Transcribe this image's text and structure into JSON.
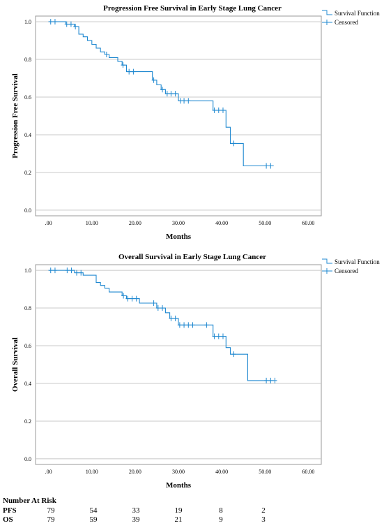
{
  "chart_data": [
    {
      "type": "line",
      "step": true,
      "title": "Progression Free Survival in Early Stage Lung Cancer",
      "xlabel": "Months",
      "ylabel": "Progression Free Survival",
      "xlim": [
        -3,
        63
      ],
      "ylim": [
        -0.03,
        1.03
      ],
      "xticks": [
        0,
        10,
        20,
        30,
        40,
        50,
        60
      ],
      "xtick_labels": [
        ".00",
        "10.00",
        "20.00",
        "30.00",
        "40.00",
        "50.00",
        "60.00"
      ],
      "yticks": [
        0,
        0.2,
        0.4,
        0.6,
        0.8,
        1.0
      ],
      "ytick_labels": [
        "0.0",
        "0.2",
        "0.4",
        "0.6",
        "0.8",
        "1.0"
      ],
      "grid": "horizontal",
      "legend": {
        "placement": "top-right",
        "entries": [
          "Survival Function",
          "Censored"
        ]
      },
      "color": "#1f88d0",
      "series": [
        {
          "steps": [
            [
              0,
              1.0
            ],
            [
              4,
              0.987
            ],
            [
              6,
              0.974
            ],
            [
              7,
              0.934
            ],
            [
              8,
              0.92
            ],
            [
              9,
              0.9
            ],
            [
              10,
              0.88
            ],
            [
              11,
              0.86
            ],
            [
              12,
              0.84
            ],
            [
              13,
              0.826
            ],
            [
              14,
              0.81
            ],
            [
              16,
              0.79
            ],
            [
              17,
              0.77
            ],
            [
              18,
              0.735
            ],
            [
              22,
              0.735
            ],
            [
              24,
              0.69
            ],
            [
              25,
              0.665
            ],
            [
              26,
              0.64
            ],
            [
              27,
              0.618
            ],
            [
              30,
              0.58
            ],
            [
              36,
              0.58
            ],
            [
              38,
              0.53
            ],
            [
              41,
              0.44
            ],
            [
              42,
              0.354
            ],
            [
              45,
              0.235
            ],
            [
              52,
              0.235
            ]
          ],
          "censored": [
            [
              0.5,
              1.0
            ],
            [
              1.5,
              1.0
            ],
            [
              4.2,
              0.987
            ],
            [
              5.2,
              0.987
            ],
            [
              6.2,
              0.974
            ],
            [
              13.4,
              0.826
            ],
            [
              17.2,
              0.77
            ],
            [
              18.6,
              0.735
            ],
            [
              19.6,
              0.735
            ],
            [
              24.3,
              0.69
            ],
            [
              26.3,
              0.64
            ],
            [
              27.4,
              0.618
            ],
            [
              28.3,
              0.618
            ],
            [
              29.3,
              0.618
            ],
            [
              30.5,
              0.58
            ],
            [
              31.3,
              0.58
            ],
            [
              32.3,
              0.58
            ],
            [
              38.3,
              0.53
            ],
            [
              39.3,
              0.53
            ],
            [
              40.3,
              0.53
            ],
            [
              42.8,
              0.354
            ],
            [
              50.3,
              0.235
            ],
            [
              51.3,
              0.235
            ]
          ]
        }
      ]
    },
    {
      "type": "line",
      "step": true,
      "title": "Overall Survival in Early Stage Lung Cancer",
      "xlabel": "Months",
      "ylabel": "Overall Survival",
      "xlim": [
        -3,
        63
      ],
      "ylim": [
        -0.03,
        1.03
      ],
      "xticks": [
        0,
        10,
        20,
        30,
        40,
        50,
        60
      ],
      "xtick_labels": [
        ".00",
        "10.00",
        "20.00",
        "30.00",
        "40.00",
        "50.00",
        "60.00"
      ],
      "yticks": [
        0,
        0.2,
        0.4,
        0.6,
        0.8,
        1.0
      ],
      "ytick_labels": [
        "0.0",
        "0.2",
        "0.4",
        "0.6",
        "0.8",
        "1.0"
      ],
      "grid": "horizontal",
      "legend": {
        "placement": "top-right",
        "entries": [
          "Survival Function",
          "Censored"
        ]
      },
      "color": "#1f88d0",
      "series": [
        {
          "steps": [
            [
              0,
              1.0
            ],
            [
              6,
              0.987
            ],
            [
              8,
              0.974
            ],
            [
              11,
              0.935
            ],
            [
              12,
              0.92
            ],
            [
              13,
              0.905
            ],
            [
              14,
              0.885
            ],
            [
              17,
              0.865
            ],
            [
              18,
              0.85
            ],
            [
              21,
              0.826
            ],
            [
              24,
              0.826
            ],
            [
              25,
              0.8
            ],
            [
              27,
              0.775
            ],
            [
              28,
              0.745
            ],
            [
              30,
              0.71
            ],
            [
              36,
              0.71
            ],
            [
              38,
              0.65
            ],
            [
              41,
              0.59
            ],
            [
              42,
              0.555
            ],
            [
              46,
              0.415
            ],
            [
              52,
              0.415
            ]
          ],
          "censored": [
            [
              0.5,
              1.0
            ],
            [
              1.5,
              1.0
            ],
            [
              4.3,
              1.0
            ],
            [
              5.3,
              1.0
            ],
            [
              6.5,
              0.987
            ],
            [
              7.5,
              0.987
            ],
            [
              17.3,
              0.865
            ],
            [
              18.3,
              0.85
            ],
            [
              19.3,
              0.85
            ],
            [
              20.3,
              0.85
            ],
            [
              24.3,
              0.826
            ],
            [
              25.3,
              0.8
            ],
            [
              26.3,
              0.8
            ],
            [
              28.3,
              0.745
            ],
            [
              29.3,
              0.745
            ],
            [
              30.3,
              0.71
            ],
            [
              31.3,
              0.71
            ],
            [
              32.3,
              0.71
            ],
            [
              33.3,
              0.71
            ],
            [
              36.5,
              0.71
            ],
            [
              38.3,
              0.65
            ],
            [
              39.3,
              0.65
            ],
            [
              40.3,
              0.65
            ],
            [
              42.8,
              0.555
            ],
            [
              50.3,
              0.415
            ],
            [
              51.3,
              0.415
            ],
            [
              52.3,
              0.415
            ]
          ]
        }
      ]
    }
  ],
  "risk_table": {
    "title": "Number At Risk",
    "times": [
      0,
      10,
      20,
      30,
      40,
      50
    ],
    "rows": [
      {
        "label": "PFS",
        "values": [
          "79",
          "54",
          "33",
          "19",
          "8",
          "2"
        ]
      },
      {
        "label": "OS",
        "values": [
          "79",
          "59",
          "39",
          "21",
          "9",
          "3"
        ]
      }
    ]
  }
}
